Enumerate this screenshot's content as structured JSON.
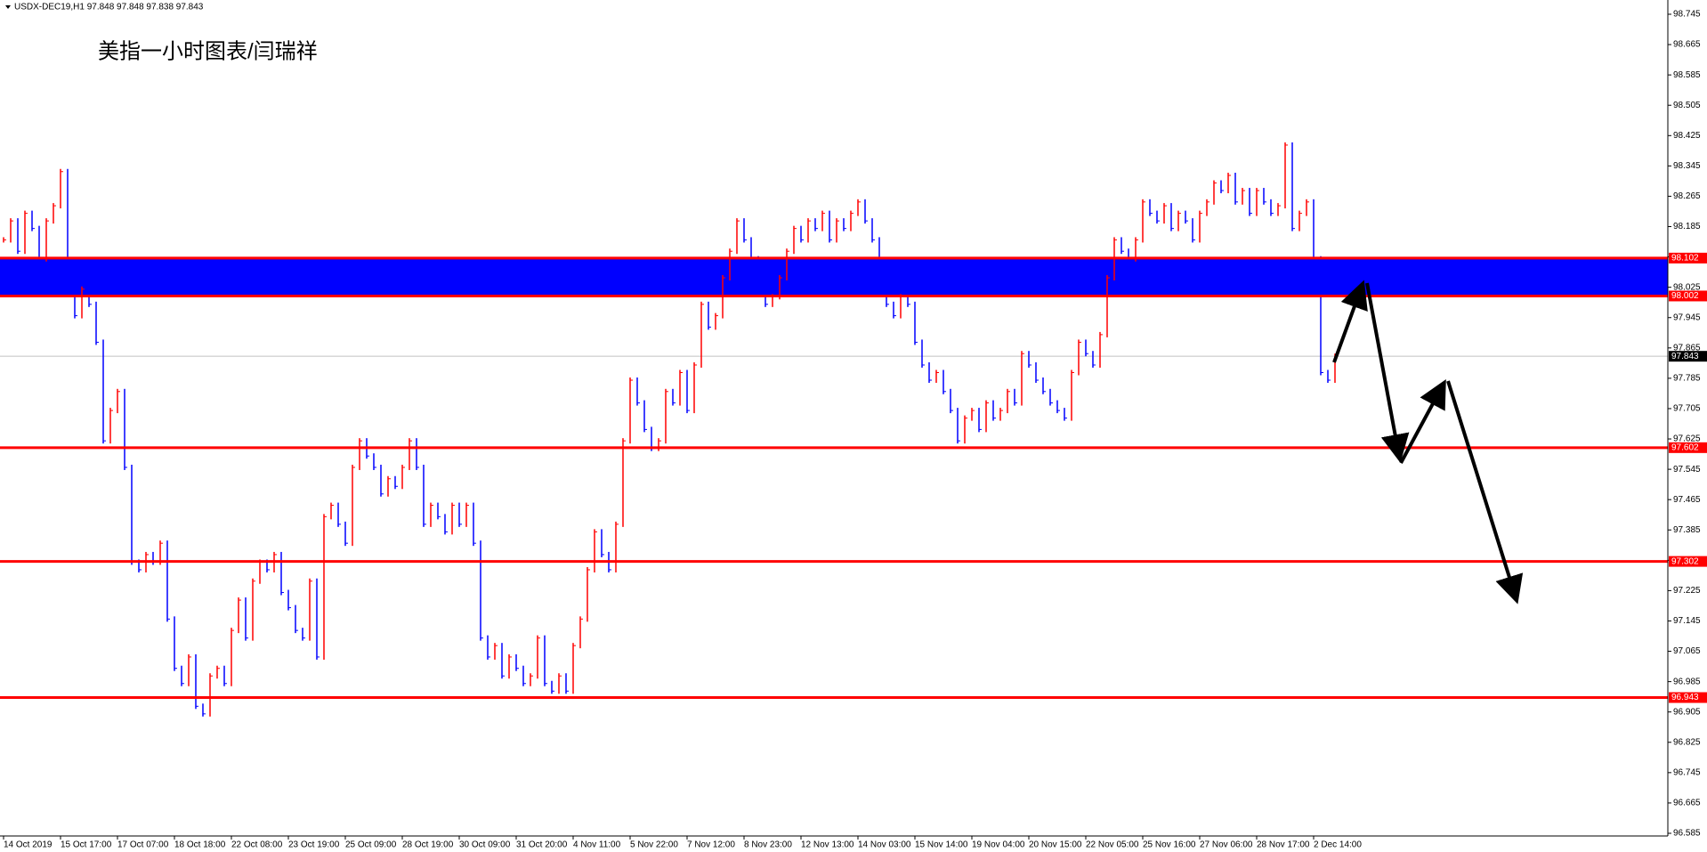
{
  "chart_data": {
    "type": "bar",
    "header": "USDX-DEC19,H1  97.848 97.848 97.838 97.843",
    "title": "美指一小时图表/闫瑞祥",
    "up_color": "#ff0000",
    "down_color": "#0000ff",
    "categories": [
      "14 Oct 2019",
      null,
      null,
      null,
      null,
      null,
      null,
      null,
      "15 Oct 17:00",
      null,
      null,
      null,
      null,
      null,
      null,
      null,
      "17 Oct 07:00",
      null,
      null,
      null,
      null,
      null,
      null,
      null,
      "18 Oct 18:00",
      null,
      null,
      null,
      null,
      null,
      null,
      null,
      "22 Oct 08:00",
      null,
      null,
      null,
      null,
      null,
      null,
      null,
      "23 Oct 19:00",
      null,
      null,
      null,
      null,
      null,
      null,
      null,
      "25 Oct 09:00",
      null,
      null,
      null,
      null,
      null,
      null,
      null,
      "28 Oct 19:00",
      null,
      null,
      null,
      null,
      null,
      null,
      null,
      "30 Oct 09:00",
      null,
      null,
      null,
      null,
      null,
      null,
      null,
      "31 Oct 20:00",
      null,
      null,
      null,
      null,
      null,
      null,
      null,
      "4 Nov 11:00",
      null,
      null,
      null,
      null,
      null,
      null,
      null,
      "5 Nov 22:00",
      null,
      null,
      null,
      null,
      null,
      null,
      null,
      "7 Nov 12:00",
      null,
      null,
      null,
      null,
      null,
      null,
      null,
      "8 Nov 23:00",
      null,
      null,
      null,
      null,
      null,
      null,
      null,
      "12 Nov 13:00",
      null,
      null,
      null,
      null,
      null,
      null,
      null,
      "14 Nov 03:00",
      null,
      null,
      null,
      null,
      null,
      null,
      null,
      "15 Nov 14:00",
      null,
      null,
      null,
      null,
      null,
      null,
      null,
      "19 Nov 04:00",
      null,
      null,
      null,
      null,
      null,
      null,
      null,
      "20 Nov 15:00",
      null,
      null,
      null,
      null,
      null,
      null,
      null,
      "22 Nov 05:00",
      null,
      null,
      null,
      null,
      null,
      null,
      null,
      "25 Nov 16:00",
      null,
      null,
      null,
      null,
      null,
      null,
      null,
      "27 Nov 06:00",
      null,
      null,
      null,
      null,
      null,
      null,
      null,
      "28 Nov 17:00",
      null,
      null,
      null,
      null,
      null,
      null,
      null,
      "2 Dec 14:00",
      null,
      null,
      null
    ],
    "values": [
      98.15,
      98.2,
      98.12,
      98.22,
      98.18,
      98.1,
      98.2,
      98.24,
      98.33,
      98.05,
      97.95,
      98.02,
      97.98,
      97.88,
      97.62,
      97.7,
      97.75,
      97.55,
      97.3,
      97.28,
      97.32,
      97.3,
      97.35,
      97.15,
      97.02,
      96.98,
      97.05,
      96.92,
      96.9,
      97.0,
      97.02,
      96.98,
      97.12,
      97.2,
      97.1,
      97.25,
      97.3,
      97.28,
      97.32,
      97.22,
      97.18,
      97.12,
      97.1,
      97.25,
      97.05,
      97.42,
      97.45,
      97.4,
      97.35,
      97.55,
      97.62,
      97.58,
      97.55,
      97.48,
      97.52,
      97.5,
      97.55,
      97.62,
      97.55,
      97.4,
      97.45,
      97.42,
      97.38,
      97.45,
      97.4,
      97.45,
      97.35,
      97.1,
      97.05,
      97.08,
      97.0,
      97.05,
      97.02,
      96.98,
      97.0,
      97.1,
      96.98,
      96.96,
      97.0,
      96.96,
      97.08,
      97.15,
      97.28,
      97.38,
      97.32,
      97.28,
      97.4,
      97.62,
      97.78,
      97.72,
      97.65,
      97.6,
      97.62,
      97.75,
      97.72,
      97.8,
      97.7,
      97.82,
      97.98,
      97.92,
      97.95,
      98.05,
      98.12,
      98.2,
      98.15,
      98.1,
      98.05,
      97.98,
      98.0,
      98.05,
      98.12,
      98.18,
      98.15,
      98.2,
      98.18,
      98.22,
      98.15,
      98.2,
      98.18,
      98.22,
      98.25,
      98.2,
      98.15,
      98.05,
      97.98,
      97.95,
      98.0,
      97.98,
      97.88,
      97.82,
      97.78,
      97.8,
      97.75,
      97.7,
      97.62,
      97.68,
      97.7,
      97.65,
      97.72,
      97.68,
      97.7,
      97.75,
      97.72,
      97.85,
      97.82,
      97.78,
      97.75,
      97.72,
      97.7,
      97.68,
      97.8,
      97.88,
      97.85,
      97.82,
      97.9,
      98.05,
      98.15,
      98.12,
      98.1,
      98.15,
      98.25,
      98.22,
      98.2,
      98.24,
      98.18,
      98.22,
      98.2,
      98.15,
      98.22,
      98.25,
      98.3,
      98.28,
      98.32,
      98.25,
      98.28,
      98.22,
      98.28,
      98.25,
      98.22,
      98.24,
      98.4,
      98.18,
      98.22,
      98.25,
      98.1,
      97.8,
      97.78,
      97.843
    ],
    "levels": [
      98.102,
      98.002,
      97.602,
      97.302,
      96.943
    ],
    "level_color": "#ff0000",
    "zone_color": "#0000ff",
    "ylim": [
      96.585,
      98.745
    ],
    "yticks": [
      98.745,
      98.665,
      98.585,
      98.505,
      98.425,
      98.345,
      98.265,
      98.185,
      98.105,
      98.025,
      97.945,
      97.865,
      97.785,
      97.705,
      97.625,
      97.545,
      97.465,
      97.385,
      97.305,
      97.225,
      97.145,
      97.065,
      96.985,
      96.905,
      96.825,
      96.745,
      96.665,
      96.585
    ]
  }
}
